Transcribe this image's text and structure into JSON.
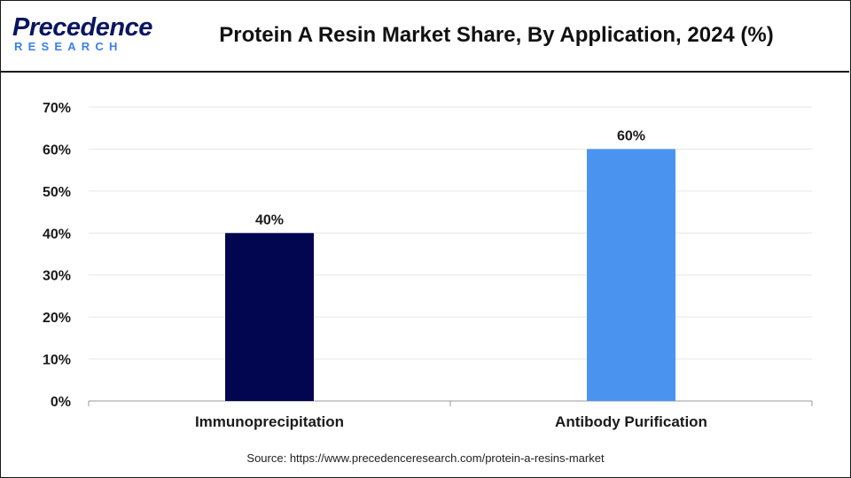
{
  "logo": {
    "word": "Precedence",
    "sub": "RESEARCH"
  },
  "title": "Protein A Resin Market Share, By Application, 2024 (%)",
  "source": "Source: https://www.precedenceresearch.com/protein-a-resins-market",
  "colors": {
    "series_dark": "#020550",
    "series_light": "#4a94f0",
    "grid": "#e6e6e6",
    "axis": "#9a9a9a"
  },
  "chart_data": {
    "type": "bar",
    "categories": [
      "Immunoprecipitation",
      "Antibody Purification"
    ],
    "values": [
      40,
      60
    ],
    "data_labels": [
      "40%",
      "60%"
    ],
    "bar_colors": [
      "#020550",
      "#4a94f0"
    ],
    "ylim": [
      0,
      70
    ],
    "yticks": [
      0,
      10,
      20,
      30,
      40,
      50,
      60,
      70
    ],
    "ytick_labels": [
      "0%",
      "10%",
      "20%",
      "30%",
      "40%",
      "50%",
      "60%",
      "70%"
    ],
    "grid": true,
    "xlabel": "",
    "ylabel": ""
  }
}
